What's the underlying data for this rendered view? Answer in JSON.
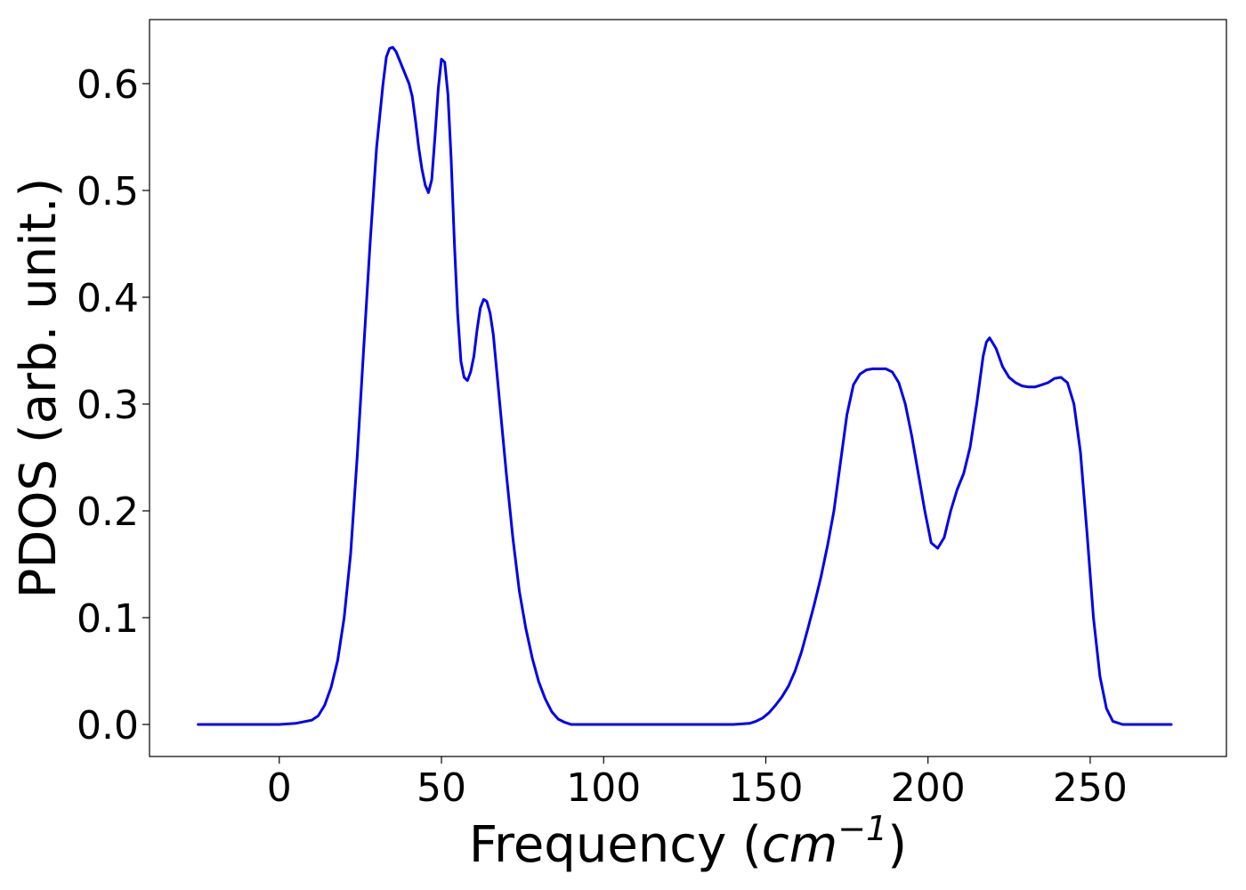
{
  "chart_data": {
    "type": "line",
    "title": "",
    "xlabel": "Frequency (",
    "xlabel_unit": "cm",
    "xlabel_exponent": "−1",
    "xlabel_close": ")",
    "ylabel": "PDOS (arb. unit.)",
    "xlim": [
      -40,
      292
    ],
    "ylim": [
      -0.03,
      0.66
    ],
    "xticks": [
      0,
      50,
      100,
      150,
      200,
      250
    ],
    "xtick_labels": [
      "0",
      "50",
      "100",
      "150",
      "200",
      "250"
    ],
    "yticks": [
      0.0,
      0.1,
      0.2,
      0.3,
      0.4,
      0.5,
      0.6
    ],
    "ytick_labels": [
      "0.0",
      "0.1",
      "0.2",
      "0.3",
      "0.4",
      "0.5",
      "0.6"
    ],
    "grid": false,
    "legend": "none",
    "series": [
      {
        "color": "#0000ee",
        "x": [
          -25,
          0,
          5,
          10,
          12,
          14,
          16,
          18,
          20,
          22,
          24,
          26,
          28,
          30,
          32,
          33,
          34,
          35,
          36,
          38,
          40,
          41,
          42,
          43,
          44,
          45,
          46,
          47,
          48,
          49,
          50,
          51,
          52,
          53,
          54,
          55,
          56,
          57,
          58,
          59,
          60,
          61,
          62,
          63,
          64,
          65,
          66,
          68,
          70,
          72,
          74,
          76,
          78,
          80,
          82,
          84,
          86,
          88,
          90,
          95,
          100,
          120,
          140,
          145,
          147,
          149,
          151,
          153,
          155,
          157,
          159,
          161,
          163,
          165,
          167,
          169,
          171,
          173,
          175,
          177,
          179,
          181,
          183,
          185,
          187,
          189,
          191,
          193,
          195,
          197,
          199,
          201,
          203,
          205,
          207,
          209,
          211,
          213,
          215,
          217,
          218,
          219,
          221,
          223,
          225,
          227,
          229,
          231,
          233,
          235,
          237,
          239,
          241,
          243,
          245,
          247,
          249,
          251,
          253,
          255,
          257,
          260,
          265,
          275
        ],
        "values": [
          0.0,
          0.0,
          0.001,
          0.004,
          0.008,
          0.018,
          0.035,
          0.06,
          0.1,
          0.16,
          0.25,
          0.35,
          0.45,
          0.54,
          0.6,
          0.625,
          0.633,
          0.634,
          0.63,
          0.615,
          0.6,
          0.588,
          0.565,
          0.54,
          0.52,
          0.505,
          0.498,
          0.51,
          0.55,
          0.595,
          0.623,
          0.62,
          0.59,
          0.53,
          0.45,
          0.385,
          0.34,
          0.325,
          0.322,
          0.33,
          0.345,
          0.37,
          0.39,
          0.398,
          0.396,
          0.385,
          0.365,
          0.3,
          0.235,
          0.175,
          0.125,
          0.09,
          0.062,
          0.04,
          0.024,
          0.012,
          0.005,
          0.002,
          0.0,
          0.0,
          0.0,
          0.0,
          0.0,
          0.001,
          0.003,
          0.006,
          0.011,
          0.018,
          0.026,
          0.036,
          0.05,
          0.068,
          0.09,
          0.113,
          0.138,
          0.167,
          0.2,
          0.245,
          0.29,
          0.318,
          0.328,
          0.332,
          0.333,
          0.333,
          0.333,
          0.33,
          0.32,
          0.3,
          0.27,
          0.235,
          0.2,
          0.17,
          0.165,
          0.175,
          0.2,
          0.22,
          0.235,
          0.26,
          0.3,
          0.345,
          0.358,
          0.362,
          0.352,
          0.335,
          0.325,
          0.32,
          0.317,
          0.316,
          0.316,
          0.318,
          0.32,
          0.324,
          0.325,
          0.32,
          0.3,
          0.255,
          0.18,
          0.1,
          0.045,
          0.015,
          0.003,
          0.0,
          0.0,
          0.0
        ]
      }
    ]
  }
}
